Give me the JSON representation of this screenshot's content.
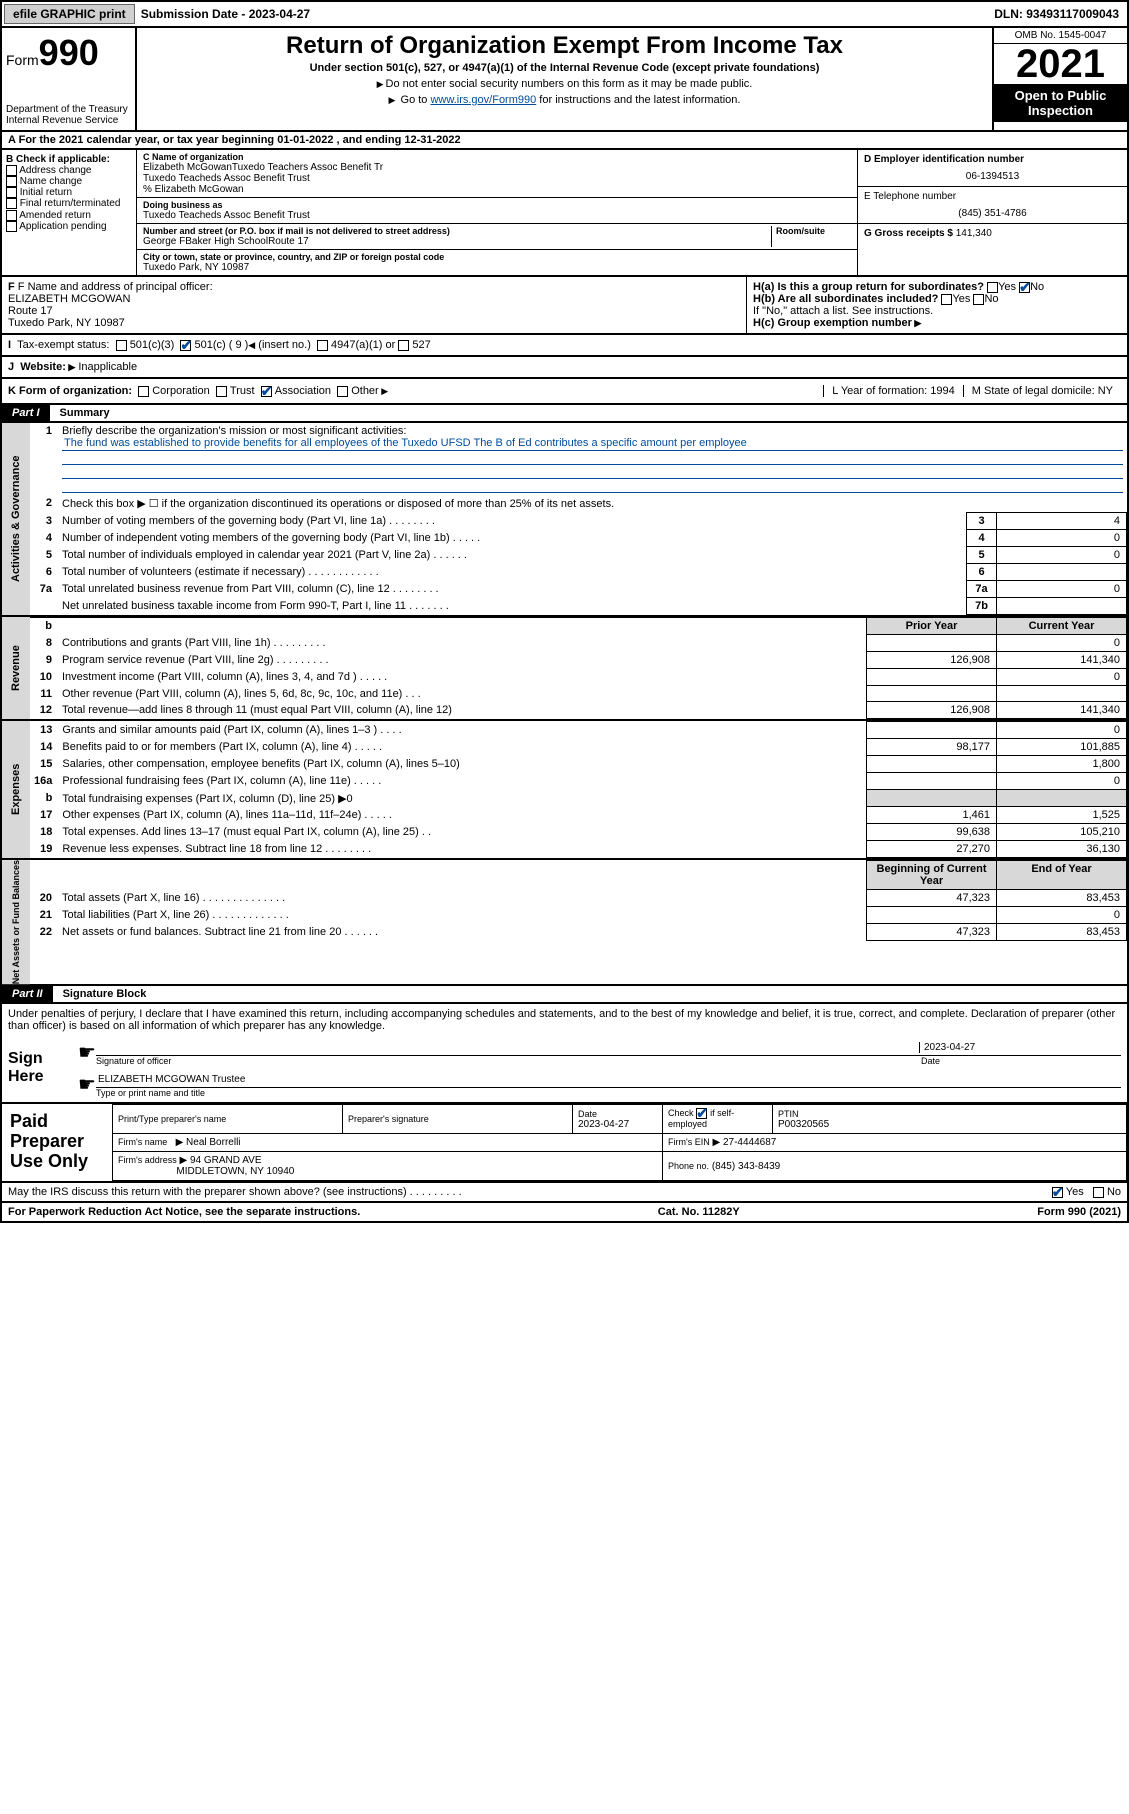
{
  "colors": {
    "link": "#004b9b",
    "header_bg": "#000000",
    "gray_bg": "#d8d8d8",
    "button_bg": "#d0d0d0"
  },
  "topbar": {
    "efile": "efile GRAPHIC print",
    "sub_label": "Submission Date - 2023-04-27",
    "dln": "DLN: 93493117009043"
  },
  "header": {
    "form_label": "Form",
    "form_no": "990",
    "dept": "Department of the Treasury",
    "irs": "Internal Revenue Service",
    "title": "Return of Organization Exempt From Income Tax",
    "subtitle": "Under section 501(c), 527, or 4947(a)(1) of the Internal Revenue Code (except private foundations)",
    "note1": "Do not enter social security numbers on this form as it may be made public.",
    "note2_pre": "Go to ",
    "note2_link": "www.irs.gov/Form990",
    "note2_post": " for instructions and the latest information.",
    "omb": "OMB No. 1545-0047",
    "year": "2021",
    "inspect": "Open to Public Inspection"
  },
  "line_a": "For the 2021 calendar year, or tax year beginning 01-01-2022  , and ending 12-31-2022",
  "box_b": {
    "label": "B Check if applicable:",
    "items": [
      "Address change",
      "Name change",
      "Initial return",
      "Final return/terminated",
      "Amended return",
      "Application pending"
    ]
  },
  "box_c": {
    "name_label": "C Name of organization",
    "name1": "Elizabeth McGowanTuxedo Teachers Assoc Benefit Tr",
    "name2": "Tuxedo Teacheds Assoc Benefit Trust",
    "care_of": "% Elizabeth McGowan",
    "dba_label": "Doing business as",
    "dba": "Tuxedo Teacheds Assoc Benefit Trust",
    "addr_label": "Number and street (or P.O. box if mail is not delivered to street address)",
    "room_label": "Room/suite",
    "addr": "George FBaker High SchoolRoute 17",
    "city_label": "City or town, state or province, country, and ZIP or foreign postal code",
    "city": "Tuxedo Park, NY  10987"
  },
  "box_d": {
    "label": "D Employer identification number",
    "val": "06-1394513"
  },
  "box_e": {
    "label": "E Telephone number",
    "val": "(845) 351-4786"
  },
  "box_g": {
    "label": "G Gross receipts $",
    "val": "141,340"
  },
  "box_f": {
    "label": "F Name and address of principal officer:",
    "name": "ELIZABETH MCGOWAN",
    "addr1": "Route 17",
    "addr2": "Tuxedo Park, NY  10987"
  },
  "box_h": {
    "a": "H(a)  Is this a group return for subordinates?",
    "a_yes": "Yes",
    "a_no": "No",
    "b": "H(b)  Are all subordinates included?",
    "b_note": "If \"No,\" attach a list. See instructions.",
    "c": "H(c)  Group exemption number"
  },
  "row_i": {
    "label": "Tax-exempt status:",
    "o1": "501(c)(3)",
    "o2": "501(c) ( 9 )",
    "o2_note": "(insert no.)",
    "o3": "4947(a)(1) or",
    "o4": "527"
  },
  "row_j": {
    "label": "Website:",
    "val": "Inapplicable"
  },
  "row_k": {
    "label": "K Form of organization:",
    "o1": "Corporation",
    "o2": "Trust",
    "o3": "Association",
    "o4": "Other",
    "l": "L Year of formation: 1994",
    "m": "M State of legal domicile: NY"
  },
  "part1": {
    "num": "Part I",
    "title": "Summary"
  },
  "gov": {
    "label": "Activities & Governance",
    "l1": "Briefly describe the organization's mission or most significant activities:",
    "mission": "The fund was established to provide benefits for all employees of the Tuxedo UFSD The B of Ed contributes a specific amount per employee",
    "l2": "Check this box ▶ ☐  if the organization discontinued its operations or disposed of more than 25% of its net assets.",
    "rows": [
      {
        "n": "3",
        "t": "Number of voting members of the governing body (Part VI, line 1a)   .    .    .    .    .    .    .    .",
        "box": "3",
        "v": "4"
      },
      {
        "n": "4",
        "t": "Number of independent voting members of the governing body (Part VI, line 1b)   .    .    .    .    .",
        "box": "4",
        "v": "0"
      },
      {
        "n": "5",
        "t": "Total number of individuals employed in calendar year 2021 (Part V, line 2a)   .    .    .    .    .    .",
        "box": "5",
        "v": "0"
      },
      {
        "n": "6",
        "t": "Total number of volunteers (estimate if necessary)   .    .    .    .    .    .    .    .    .    .    .    .",
        "box": "6",
        "v": ""
      },
      {
        "n": "7a",
        "t": "Total unrelated business revenue from Part VIII, column (C), line 12   .    .    .    .    .    .    .    .",
        "box": "7a",
        "v": "0"
      },
      {
        "n": "",
        "t": "Net unrelated business taxable income from Form 990-T, Part I, line 11   .    .    .    .    .    .    .",
        "box": "7b",
        "v": ""
      }
    ]
  },
  "cols": {
    "prior": "Prior Year",
    "current": "Current Year",
    "boy": "Beginning of Current Year",
    "eoy": "End of Year"
  },
  "rev": {
    "label": "Revenue",
    "rows": [
      {
        "n": "8",
        "t": "Contributions and grants (Part VIII, line 1h)   .    .    .    .    .    .    .    .    .",
        "p": "",
        "c": "0"
      },
      {
        "n": "9",
        "t": "Program service revenue (Part VIII, line 2g)   .    .    .    .    .    .    .    .    .",
        "p": "126,908",
        "c": "141,340"
      },
      {
        "n": "10",
        "t": "Investment income (Part VIII, column (A), lines 3, 4, and 7d )   .    .    .    .    .",
        "p": "",
        "c": "0"
      },
      {
        "n": "11",
        "t": "Other revenue (Part VIII, column (A), lines 5, 6d, 8c, 9c, 10c, and 11e)   .    .    .",
        "p": "",
        "c": ""
      },
      {
        "n": "12",
        "t": "Total revenue—add lines 8 through 11 (must equal Part VIII, column (A), line 12)",
        "p": "126,908",
        "c": "141,340"
      }
    ]
  },
  "exp": {
    "label": "Expenses",
    "rows": [
      {
        "n": "13",
        "t": "Grants and similar amounts paid (Part IX, column (A), lines 1–3 )   .    .    .    .",
        "p": "",
        "c": "0"
      },
      {
        "n": "14",
        "t": "Benefits paid to or for members (Part IX, column (A), line 4)   .    .    .    .    .",
        "p": "98,177",
        "c": "101,885"
      },
      {
        "n": "15",
        "t": "Salaries, other compensation, employee benefits (Part IX, column (A), lines 5–10)",
        "p": "",
        "c": "1,800"
      },
      {
        "n": "16a",
        "t": "Professional fundraising fees (Part IX, column (A), line 11e)   .    .    .    .    .",
        "p": "",
        "c": "0"
      },
      {
        "n": "b",
        "t": "Total fundraising expenses (Part IX, column (D), line 25) ▶0",
        "p": "GRAY",
        "c": "GRAY"
      },
      {
        "n": "17",
        "t": "Other expenses (Part IX, column (A), lines 11a–11d, 11f–24e)   .    .    .    .    .",
        "p": "1,461",
        "c": "1,525"
      },
      {
        "n": "18",
        "t": "Total expenses. Add lines 13–17 (must equal Part IX, column (A), line 25)   .    .",
        "p": "99,638",
        "c": "105,210"
      },
      {
        "n": "19",
        "t": "Revenue less expenses. Subtract line 18 from line 12   .    .    .    .    .    .    .    .",
        "p": "27,270",
        "c": "36,130"
      }
    ]
  },
  "na": {
    "label": "Net Assets or Fund Balances",
    "rows": [
      {
        "n": "20",
        "t": "Total assets (Part X, line 16)   .    .    .    .    .    .    .    .    .    .    .    .    .    .",
        "p": "47,323",
        "c": "83,453"
      },
      {
        "n": "21",
        "t": "Total liabilities (Part X, line 26)   .    .    .    .    .    .    .    .    .    .    .    .    .",
        "p": "",
        "c": "0"
      },
      {
        "n": "22",
        "t": "Net assets or fund balances. Subtract line 21 from line 20   .    .    .    .    .    .",
        "p": "47,323",
        "c": "83,453"
      }
    ]
  },
  "part2": {
    "num": "Part II",
    "title": "Signature Block"
  },
  "penalties": "Under penalties of perjury, I declare that I have examined this return, including accompanying schedules and statements, and to the best of my knowledge and belief, it is true, correct, and complete. Declaration of preparer (other than officer) is based on all information of which preparer has any knowledge.",
  "sign": {
    "here": "Sign Here",
    "sig_label": "Signature of officer",
    "date": "2023-04-27",
    "date_label": "Date",
    "name": "ELIZABETH MCGOWAN Trustee",
    "name_label": "Type or print name and title"
  },
  "prep": {
    "left": "Paid Preparer Use Only",
    "h1": "Print/Type preparer's name",
    "h2": "Preparer's signature",
    "h3": "Date",
    "h4_pre": "Check",
    "h4_post": "if self-employed",
    "h5": "PTIN",
    "date": "2023-04-27",
    "ptin": "P00320565",
    "firm_name_l": "Firm's name",
    "firm_name": "Neal Borrelli",
    "firm_ein_l": "Firm's EIN",
    "firm_ein": "27-4444687",
    "firm_addr_l": "Firm's address",
    "firm_addr1": "94 GRAND AVE",
    "firm_addr2": "MIDDLETOWN, NY 10940",
    "phone_l": "Phone no.",
    "phone": "(845) 343-8439"
  },
  "discuss": {
    "q": "May the IRS discuss this return with the preparer shown above? (see instructions)   .    .    .    .    .    .    .    .    .",
    "yes": "Yes",
    "no": "No"
  },
  "footer": {
    "l": "For Paperwork Reduction Act Notice, see the separate instructions.",
    "m": "Cat. No. 11282Y",
    "r": "Form 990 (2021)"
  }
}
